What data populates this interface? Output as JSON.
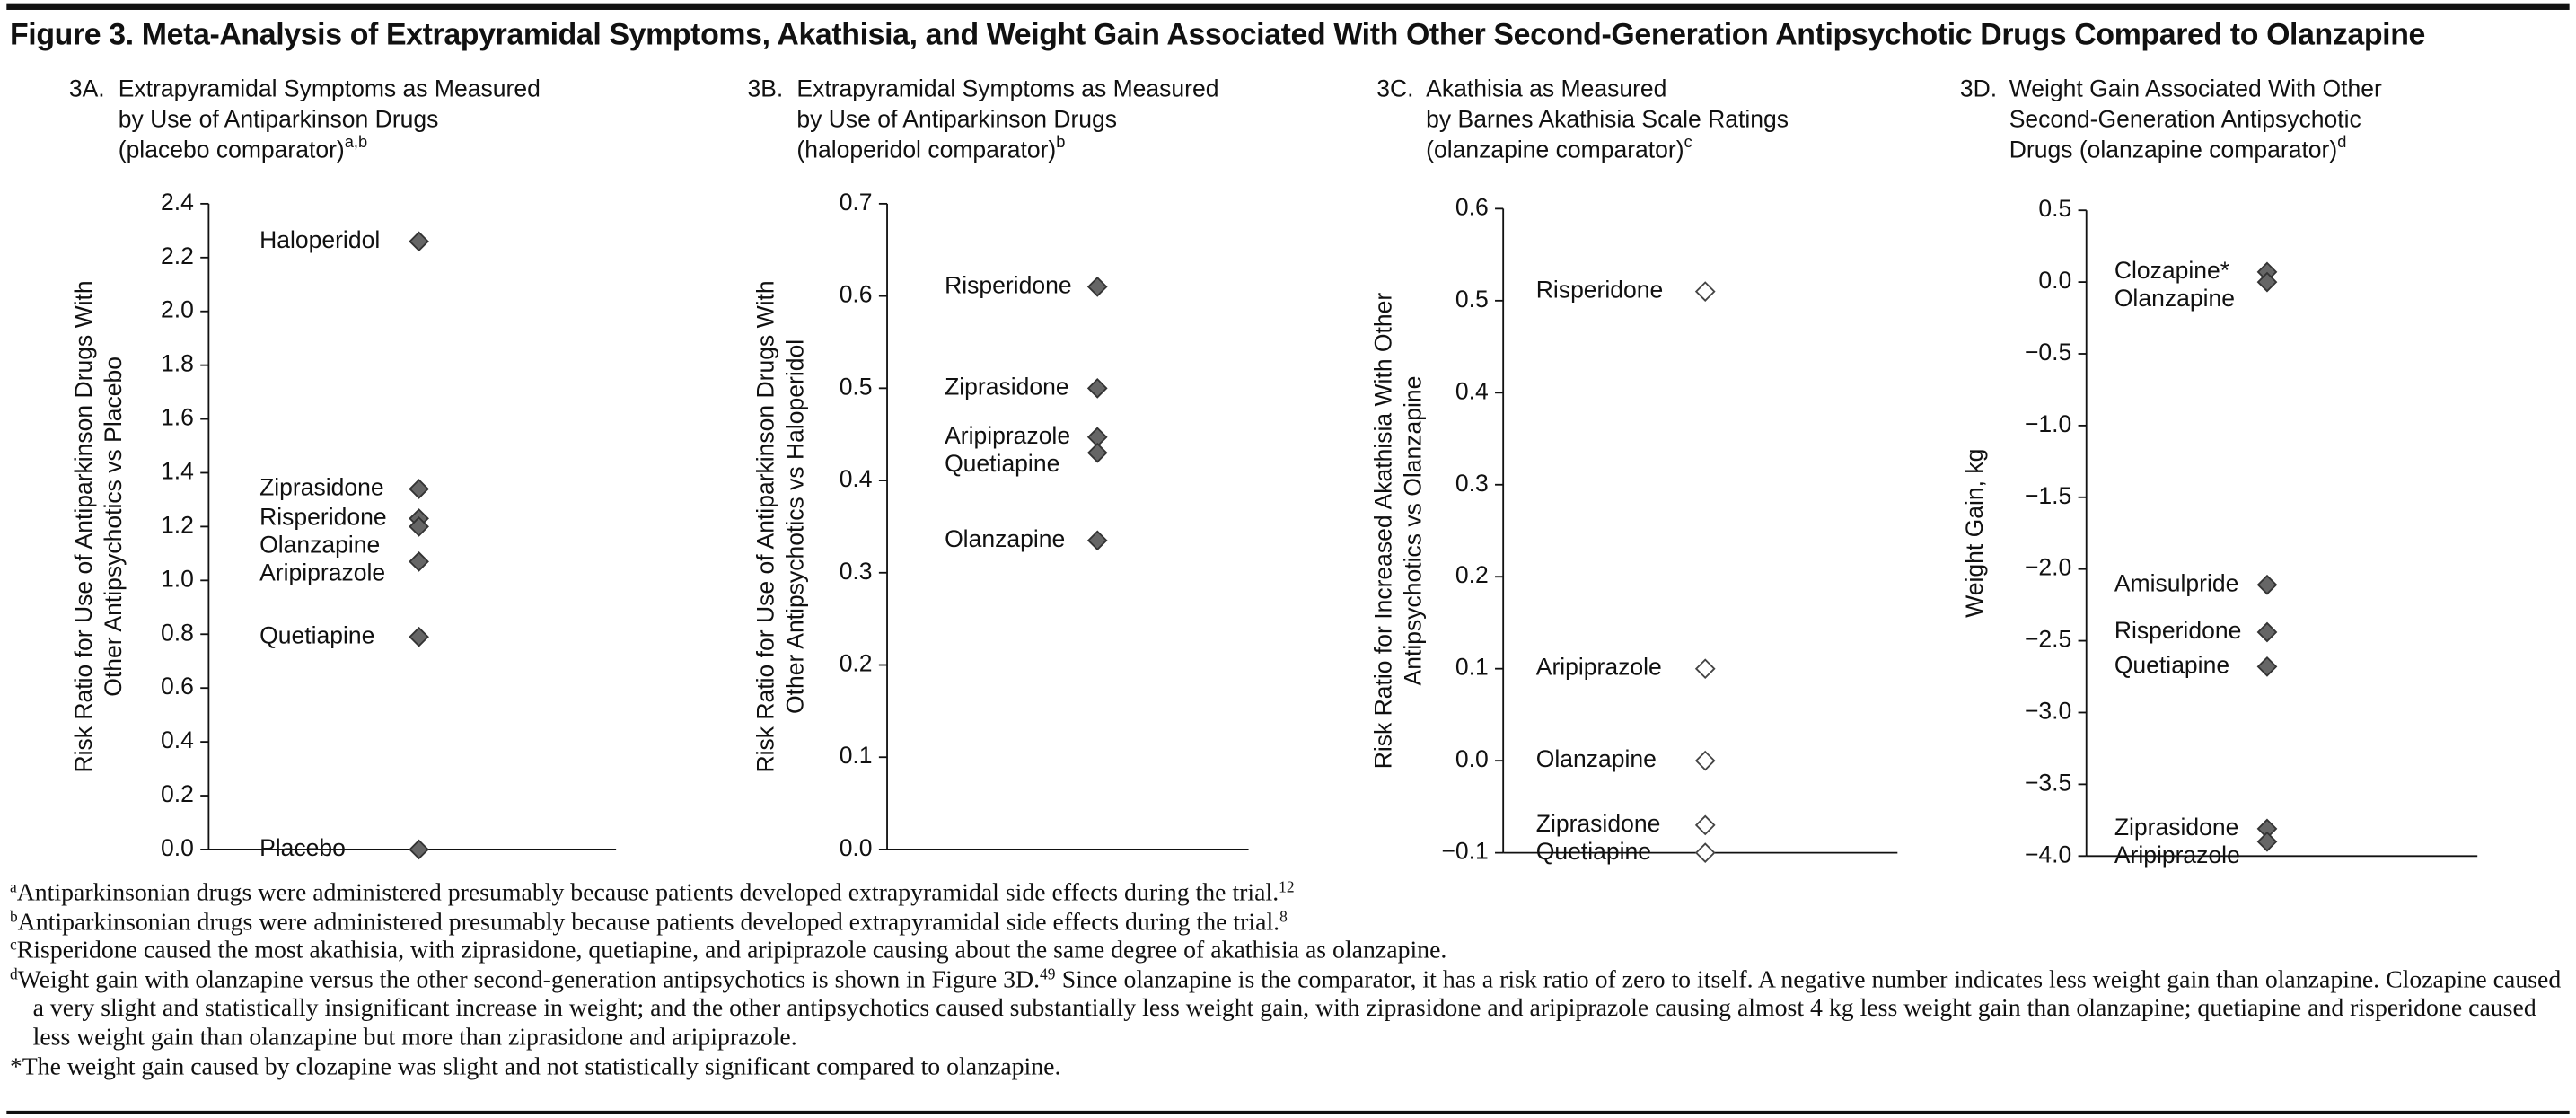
{
  "title": "Figure 3. Meta-Analysis of Extrapyramidal Symptoms, Akathisia, and Weight Gain Associated With Other Second-Generation Antipsychotic Drugs Compared to Olanzapine",
  "chart_data": [
    {
      "type": "dot",
      "label": "3A.",
      "title_lines": [
        "Extrapyramidal  Symptoms as Measured",
        "by Use of Antiparkinson Drugs",
        "(placebo comparator)"
      ],
      "title_sup": "a,b",
      "ylabel_lines": [
        "Risk Ratio for Use of Antiparkinson Drugs With",
        "Other  Antipsychotics vs Placebo"
      ],
      "categories": [
        "Haloperidol",
        "Ziprasidone",
        "Risperidone",
        "Olanzapine",
        "Aripiprazole",
        "Quetiapine",
        "Placebo"
      ],
      "values": [
        2.26,
        1.34,
        1.23,
        1.2,
        1.07,
        0.79,
        0
      ],
      "color": "#666666",
      "filled": true,
      "ylim": [
        0,
        2.4
      ],
      "yticks": [
        {
          "value": 0,
          "label": "0.0"
        },
        0.2,
        0.4,
        0.6,
        0.8,
        {
          "value": 1,
          "label": "1.0"
        },
        1.2,
        1.4,
        1.6,
        1.8,
        {
          "value": 2,
          "label": "2.0"
        },
        2.2,
        2.4
      ]
    },
    {
      "type": "dot",
      "label": "3B.",
      "title_lines": [
        "Extrapyramidal  Symptoms as Measured",
        "by Use of Antiparkinson Drugs",
        "(haloperidol comparator)"
      ],
      "title_sup": "b",
      "ylabel_lines": [
        "Risk Ratio for Use of Antiparkinson Drugs With",
        "Other  Antipsychotics vs Haloperidol"
      ],
      "categories": [
        "Risperidone",
        "Ziprasidone",
        "Aripiprazole",
        "Quetiapine",
        "Olanzapine"
      ],
      "values": [
        0.61,
        0.5,
        0.447,
        0.43,
        0.335
      ],
      "color": "#666666",
      "filled": true,
      "ylim": [
        0,
        0.7
      ],
      "yticks": [
        {
          "value": 0,
          "label": "0.0"
        },
        0.1,
        0.2,
        0.3,
        0.4,
        0.5,
        0.6,
        0.7
      ]
    },
    {
      "type": "dot",
      "label": "3C.",
      "title_lines": [
        "Akathisia as Measured",
        "by Barnes Akathisia Scale Ratings",
        "(olanzapine comparator)"
      ],
      "title_sup": "c",
      "ylabel_lines": [
        "Risk Ratio for Increased Akathisia  With Other",
        "Antipsychotics vs Olanzapine"
      ],
      "categories": [
        "Risperidone",
        "Aripiprazole",
        "Olanzapine",
        "Ziprasidone",
        "Quetiapine"
      ],
      "values": [
        0.51,
        0.1,
        0,
        -0.07,
        -0.1
      ],
      "color": "#444444",
      "filled": false,
      "ylim": [
        -0.1,
        0.6
      ],
      "yticks": [
        {
          "value": -0.1,
          "label": "−0.1"
        },
        {
          "value": 0,
          "label": "0.0"
        },
        0.1,
        0.2,
        0.3,
        0.4,
        0.5,
        0.6
      ]
    },
    {
      "type": "dot",
      "label": "3D.",
      "title_lines": [
        "Weight Gain Associated With Other",
        "Second-Generation Antipsychotic",
        "Drugs (olanzapine comparator)"
      ],
      "title_sup": "d",
      "ylabel_lines": [
        "Weight Gain, kg"
      ],
      "categories": [
        "Clozapine*",
        "Olanzapine",
        "Amisulpride",
        "Risperidone",
        "Quetiapine",
        "Ziprasidone",
        "Aripiprazole"
      ],
      "values": [
        0.07,
        0,
        -2.11,
        -2.44,
        -2.68,
        -3.81,
        -3.9
      ],
      "color": "#666666",
      "filled": true,
      "ylim": [
        -4,
        0.5
      ],
      "yticks": [
        {
          "value": -4,
          "label": "−4.0"
        },
        {
          "value": -3.5,
          "label": "−3.5"
        },
        {
          "value": -3,
          "label": "−3.0"
        },
        {
          "value": -2.5,
          "label": "−2.5"
        },
        {
          "value": -2,
          "label": "−2.0"
        },
        {
          "value": -1.5,
          "label": "−1.5"
        },
        {
          "value": -1,
          "label": "−1.0"
        },
        {
          "value": -0.5,
          "label": "−0.5"
        },
        {
          "value": 0,
          "label": "0.0"
        },
        0.5
      ]
    }
  ],
  "footnotes": [
    {
      "mark": "a",
      "text": "Antiparkinsonian drugs were administered presumably because patients developed extrapyramidal side effects during the trial.",
      "ref": "12"
    },
    {
      "mark": "b",
      "text": "Antiparkinsonian drugs were administered presumably because patients developed extrapyramidal side effects during the trial.",
      "ref": "8"
    },
    {
      "mark": "c",
      "text": "Risperidone caused the most akathisia, with ziprasidone, quetiapine, and aripiprazole causing about the same degree of akathisia as olanzapine."
    },
    {
      "mark": "d",
      "text": "Weight gain with olanzapine versus the other second-generation antipsychotics is shown in Figure 3D.",
      "ref": "49",
      "text_after": "Since olanzapine is the comparator, it has a risk ratio of zero to itself. A negative number indicates less weight gain than olanzapine. Clozapine caused a very slight and statistically insignificant increase in weight; and the other antipsychotics caused substantially less weight gain, with ziprasidone and aripiprazole causing almost 4 kg less weight gain than olanzapine; quetiapine and risperidone caused less weight gain than olanzapine but more than ziprasidone and aripiprazole."
    },
    {
      "mark": "*",
      "text": "The weight gain caused by clozapine was slight and not statistically significant compared to olanzapine."
    }
  ]
}
